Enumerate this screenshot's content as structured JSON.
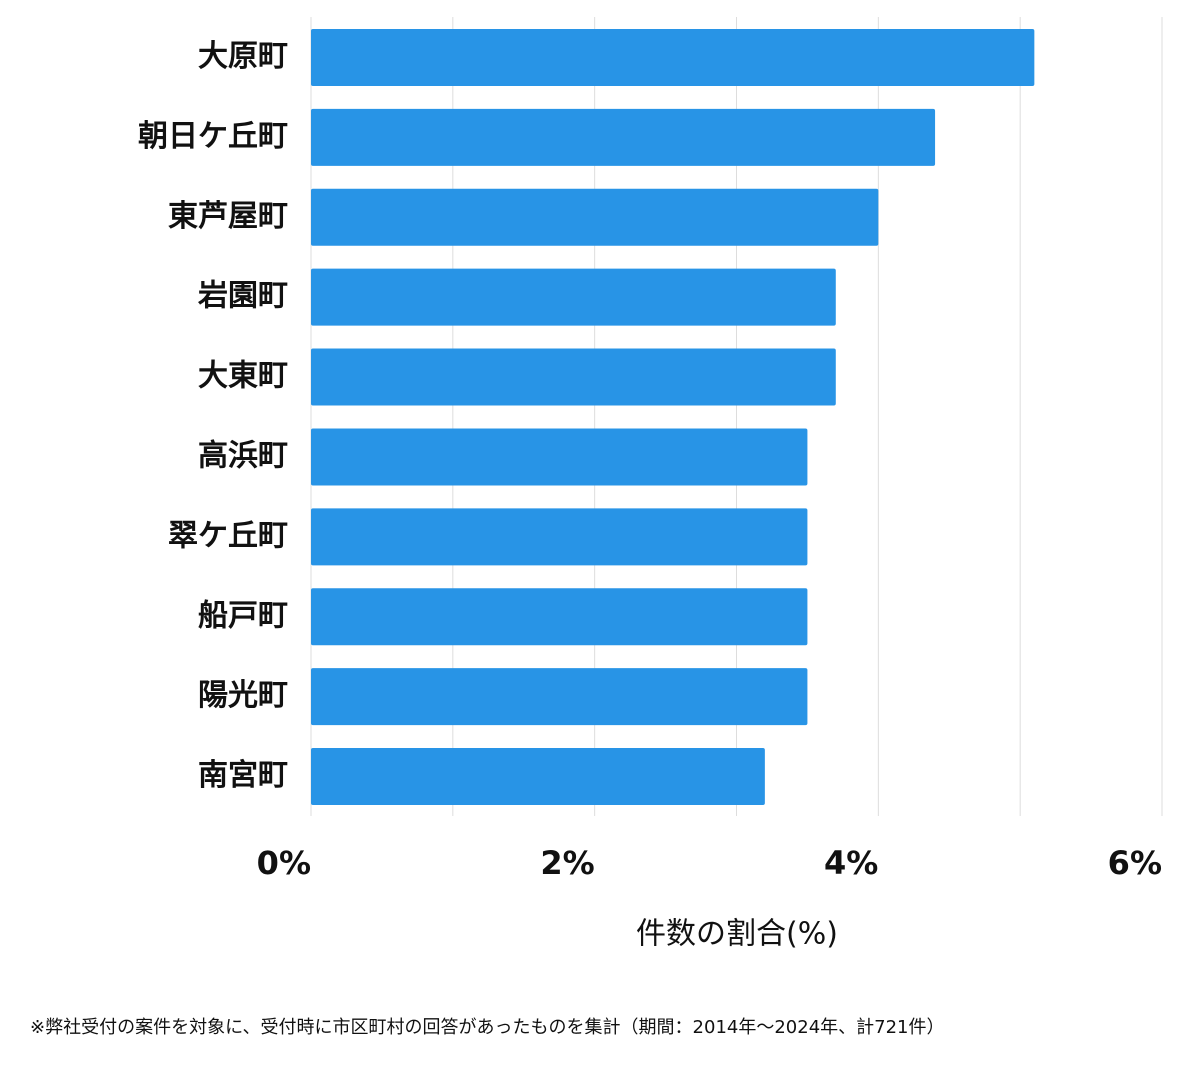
{
  "chart_data": {
    "type": "bar",
    "orientation": "horizontal",
    "categories": [
      "大原町",
      "朝日ケ丘町",
      "東芦屋町",
      "岩園町",
      "大東町",
      "高浜町",
      "翠ケ丘町",
      "船戸町",
      "陽光町",
      "南宮町"
    ],
    "values": [
      5.1,
      4.4,
      4.0,
      3.7,
      3.7,
      3.5,
      3.5,
      3.5,
      3.5,
      3.2
    ],
    "color": "#2894e6",
    "xlim": [
      0,
      6
    ],
    "xticks": [
      {
        "value": 0,
        "label": "0%"
      },
      {
        "value": 2,
        "label": "2%"
      },
      {
        "value": 4,
        "label": "4%"
      },
      {
        "value": 6,
        "label": "6%"
      }
    ],
    "minor_xticks": [
      1,
      3,
      5
    ],
    "grid": true,
    "xlabel": "件数の割合(%)",
    "footnote": "※弊社受付の案件を対象に、受付時に市区町村の回答があったものを集計（期間：2014年～2024年、計721件）"
  }
}
